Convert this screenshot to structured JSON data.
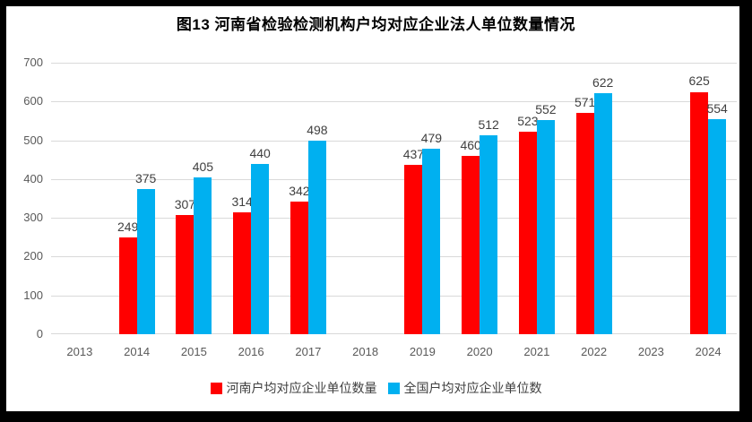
{
  "title": "图13 河南省检验检测机构户均对应企业法人单位数量情况",
  "chart_data": {
    "type": "bar",
    "title": "图13 河南省检验检测机构户均对应企业法人单位数量情况",
    "categories": [
      "2013",
      "2014",
      "2015",
      "2016",
      "2017",
      "2018",
      "2019",
      "2020",
      "2021",
      "2022",
      "2023",
      "2024"
    ],
    "series": [
      {
        "name": "河南户均对应企业单位数量",
        "key": "henan",
        "color": "#ff0000",
        "values": [
          null,
          249,
          307,
          314,
          342,
          null,
          437,
          460,
          523,
          571,
          null,
          625
        ]
      },
      {
        "name": "全国户均对应企业单位数",
        "key": "national",
        "color": "#00b0f0",
        "values": [
          null,
          375,
          405,
          440,
          498,
          null,
          479,
          512,
          552,
          622,
          null,
          554
        ]
      }
    ],
    "ylim": [
      0,
      700
    ],
    "yticks": [
      0,
      100,
      200,
      300,
      400,
      500,
      600,
      700
    ],
    "xlabel": "",
    "ylabel": "",
    "grid": true,
    "value_labels": true,
    "legend_position": "bottom"
  },
  "colors": {
    "frame": "#000000",
    "background": "#ffffff",
    "grid": "#d9d9d9",
    "axis_label": "#595959",
    "value_label": "#404040",
    "legend_text": "#404040",
    "title_text": "#000000"
  }
}
